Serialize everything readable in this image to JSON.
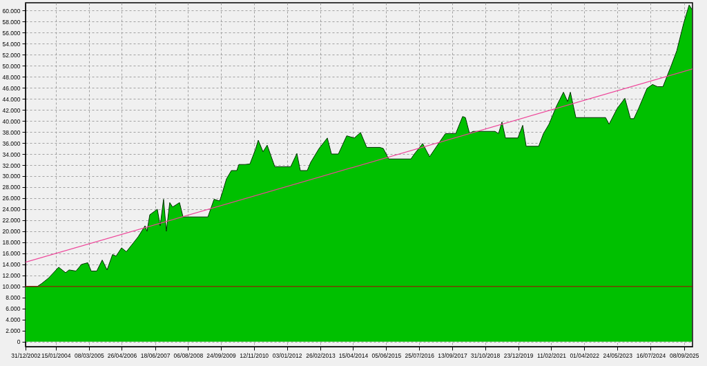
{
  "chart_data": {
    "type": "area",
    "xlim": [
      "2002-12-31",
      "2025-12-24"
    ],
    "ylim": [
      -900,
      61400
    ],
    "xticks": [
      {
        "value": "2002-12-31",
        "label": "31/12/2002"
      },
      {
        "value": "2004-01-15",
        "label": "15/01/2004"
      },
      {
        "value": "2005-03-08",
        "label": "08/03/2005"
      },
      {
        "value": "2006-04-26",
        "label": "26/04/2006"
      },
      {
        "value": "2007-06-18",
        "label": "18/06/2007"
      },
      {
        "value": "2008-08-06",
        "label": "06/08/2008"
      },
      {
        "value": "2009-09-24",
        "label": "24/09/2009"
      },
      {
        "value": "2010-11-12",
        "label": "12/11/2010"
      },
      {
        "value": "2012-01-03",
        "label": "03/01/2012"
      },
      {
        "value": "2013-02-26",
        "label": "26/02/2013"
      },
      {
        "value": "2014-04-15",
        "label": "15/04/2014"
      },
      {
        "value": "2015-06-05",
        "label": "05/06/2015"
      },
      {
        "value": "2016-07-25",
        "label": "25/07/2016"
      },
      {
        "value": "2017-09-13",
        "label": "13/09/2017"
      },
      {
        "value": "2018-10-31",
        "label": "31/10/2018"
      },
      {
        "value": "2019-12-23",
        "label": "23/12/2019"
      },
      {
        "value": "2021-02-11",
        "label": "11/02/2021"
      },
      {
        "value": "2022-04-01",
        "label": "01/04/2022"
      },
      {
        "value": "2023-05-24",
        "label": "24/05/2023"
      },
      {
        "value": "2024-07-16",
        "label": "16/07/2024"
      },
      {
        "value": "2025-09-08",
        "label": "08/09/2025"
      }
    ],
    "yticks": [
      0,
      {
        "value": 2000,
        "label": "2.000"
      },
      {
        "value": 4000,
        "label": "4.000"
      },
      {
        "value": 6000,
        "label": "6.000"
      },
      {
        "value": 8000,
        "label": "8.000"
      },
      {
        "value": 10000,
        "label": "10.000"
      },
      {
        "value": 12000,
        "label": "12.000"
      },
      {
        "value": 14000,
        "label": "14.000"
      },
      {
        "value": 16000,
        "label": "16.000"
      },
      {
        "value": 18000,
        "label": "18.000"
      },
      {
        "value": 20000,
        "label": "20.000"
      },
      {
        "value": 22000,
        "label": "22.000"
      },
      {
        "value": 24000,
        "label": "24.000"
      },
      {
        "value": 26000,
        "label": "26.000"
      },
      {
        "value": 28000,
        "label": "28.000"
      },
      {
        "value": 30000,
        "label": "30.000"
      },
      {
        "value": 32000,
        "label": "32.000"
      },
      {
        "value": 34000,
        "label": "34.000"
      },
      {
        "value": 36000,
        "label": "36.000"
      },
      {
        "value": 38000,
        "label": "38.000"
      },
      {
        "value": 40000,
        "label": "40.000"
      },
      {
        "value": 42000,
        "label": "42.000"
      },
      {
        "value": 44000,
        "label": "44.000"
      },
      {
        "value": 46000,
        "label": "46.000"
      },
      {
        "value": 48000,
        "label": "48.000"
      },
      {
        "value": 50000,
        "label": "50.000"
      },
      {
        "value": 52000,
        "label": "52.000"
      },
      {
        "value": 54000,
        "label": "54.000"
      },
      {
        "value": 56000,
        "label": "56.000"
      },
      {
        "value": 58000,
        "label": "58.000"
      },
      {
        "value": 60000,
        "label": "60.000"
      }
    ],
    "grid": true,
    "series": [
      {
        "color": "#00c000",
        "x": [
          "2002-12-31",
          "2003-05-28",
          "2003-07-19",
          "2003-10-14",
          "2004-02-21",
          "2004-05-18",
          "2004-07-01",
          "2004-09-26",
          "2004-12-04",
          "2005-02-21",
          "2005-04-05",
          "2005-06-14",
          "2005-08-22",
          "2005-10-22",
          "2005-12-30",
          "2006-02-12",
          "2006-04-22",
          "2006-06-22",
          "2006-11-17",
          "2007-02-12",
          "2007-03-09",
          "2007-04-13",
          "2007-07-17",
          "2007-08-21",
          "2007-10-03",
          "2007-11-07",
          "2007-12-20",
          "2008-01-25",
          "2008-04-21",
          "2008-06-04",
          "2009-04-13",
          "2009-06-30",
          "2009-09-08",
          "2009-10-12",
          "2009-12-03",
          "2010-02-02",
          "2010-04-12",
          "2010-05-08",
          "2010-07-25",
          "2010-09-24",
          "2010-12-02",
          "2011-01-07",
          "2011-03-08",
          "2011-04-29",
          "2011-08-03",
          "2012-02-19",
          "2012-05-07",
          "2012-06-19",
          "2012-09-14",
          "2012-10-28",
          "2013-02-10",
          "2013-05-25",
          "2013-07-16",
          "2013-10-11",
          "2014-01-24",
          "2014-04-30",
          "2014-07-17",
          "2014-10-03",
          "2015-03-17",
          "2015-04-29",
          "2015-07-07",
          "2016-04-11",
          "2016-05-24",
          "2016-09-06",
          "2016-12-02",
          "2017-03-25",
          "2017-06-19",
          "2017-10-27",
          "2018-01-22",
          "2018-02-26",
          "2018-04-19",
          "2018-06-01",
          "2019-03-06",
          "2019-04-19",
          "2019-06-01",
          "2019-07-15",
          "2019-12-18",
          "2020-02-17",
          "2020-04-01",
          "2020-09-05",
          "2020-11-04",
          "2021-01-13",
          "2021-04-18",
          "2021-07-14",
          "2021-09-04",
          "2021-10-09",
          "2021-12-17",
          "2022-12-26",
          "2023-02-08",
          "2023-05-23",
          "2023-08-26",
          "2023-11-04",
          "2023-12-17",
          "2024-02-16",
          "2024-05-31",
          "2024-08-08",
          "2024-10-08",
          "2024-12-17",
          "2025-03-31",
          "2025-06-09",
          "2025-09-04",
          "2025-11-12",
          "2025-12-16"
        ],
        "values": [
          10000,
          10000,
          10500,
          11500,
          13500,
          12500,
          13000,
          12800,
          14000,
          14300,
          12800,
          12800,
          14800,
          13000,
          15800,
          15500,
          17000,
          16300,
          19000,
          21000,
          20000,
          23000,
          24000,
          21000,
          25800,
          20000,
          25200,
          24400,
          25200,
          22600,
          22600,
          25800,
          25500,
          27000,
          29500,
          31000,
          31000,
          32100,
          32100,
          32200,
          34800,
          36500,
          34400,
          35600,
          31700,
          31700,
          34100,
          31000,
          31000,
          32500,
          35000,
          36900,
          34000,
          34000,
          37300,
          36900,
          37900,
          35200,
          35200,
          35000,
          33100,
          33100,
          34000,
          35900,
          33500,
          35900,
          37700,
          37700,
          40800,
          40600,
          37700,
          38100,
          38100,
          37700,
          39800,
          36900,
          36900,
          39200,
          35400,
          35400,
          37700,
          39400,
          42700,
          45200,
          43500,
          45200,
          40600,
          40600,
          39400,
          42300,
          44100,
          40400,
          40400,
          42300,
          45900,
          46600,
          46200,
          46200,
          50000,
          52700,
          57700,
          61000,
          60200
        ]
      },
      {
        "type": "line",
        "color": "#ee4499",
        "x": [
          "2002-12-31",
          "2025-12-24"
        ],
        "values": [
          14400,
          49400
        ]
      }
    ],
    "ref_lines": [
      {
        "axis": "y",
        "value": 10000,
        "color": "#b00000"
      }
    ]
  }
}
